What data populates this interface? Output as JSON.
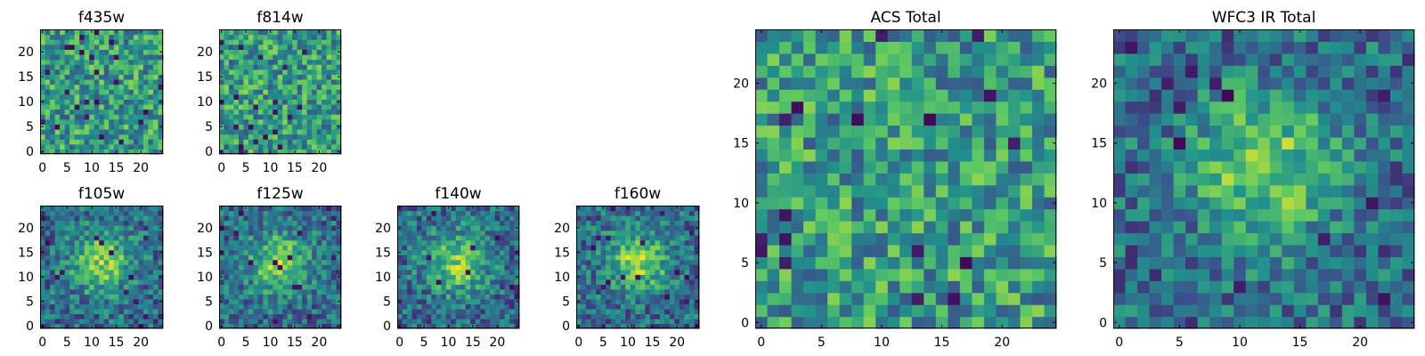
{
  "figure": {
    "type": "heatmap-grid"
  },
  "colormap": [
    "#440154",
    "#3b528b",
    "#21918c",
    "#5ec962",
    "#fde725"
  ],
  "chart_data": [
    {
      "type": "heatmap",
      "title": "f435w",
      "xticks": [
        0,
        5,
        10,
        15,
        20
      ],
      "yticks": [
        0,
        5,
        10,
        15,
        20
      ],
      "xlim": [
        -0.5,
        24.5
      ],
      "ylim": [
        -0.5,
        24.5
      ],
      "grid_size": [
        25,
        25
      ],
      "pattern": "noise",
      "seed": 11
    },
    {
      "type": "heatmap",
      "title": "f814w",
      "xticks": [
        0,
        5,
        10,
        15,
        20
      ],
      "yticks": [
        0,
        5,
        10,
        15,
        20
      ],
      "xlim": [
        -0.5,
        24.5
      ],
      "ylim": [
        -0.5,
        24.5
      ],
      "grid_size": [
        25,
        25
      ],
      "pattern": "noise",
      "seed": 23
    },
    {
      "type": "heatmap",
      "title": "f105w",
      "xticks": [
        0,
        5,
        10,
        15,
        20
      ],
      "yticks": [
        0,
        5,
        10,
        15,
        20
      ],
      "xlim": [
        -0.5,
        24.5
      ],
      "ylim": [
        -0.5,
        24.5
      ],
      "grid_size": [
        25,
        25
      ],
      "pattern": "central source",
      "seed": 37
    },
    {
      "type": "heatmap",
      "title": "f125w",
      "xticks": [
        0,
        5,
        10,
        15,
        20
      ],
      "yticks": [
        0,
        5,
        10,
        15,
        20
      ],
      "xlim": [
        -0.5,
        24.5
      ],
      "ylim": [
        -0.5,
        24.5
      ],
      "grid_size": [
        25,
        25
      ],
      "pattern": "central source",
      "seed": 41
    },
    {
      "type": "heatmap",
      "title": "f140w",
      "xticks": [
        0,
        5,
        10,
        15,
        20
      ],
      "yticks": [
        0,
        5,
        10,
        15,
        20
      ],
      "xlim": [
        -0.5,
        24.5
      ],
      "ylim": [
        -0.5,
        24.5
      ],
      "grid_size": [
        25,
        25
      ],
      "pattern": "central source",
      "seed": 53
    },
    {
      "type": "heatmap",
      "title": "f160w",
      "xticks": [
        0,
        5,
        10,
        15,
        20
      ],
      "yticks": [
        0,
        5,
        10,
        15,
        20
      ],
      "xlim": [
        -0.5,
        24.5
      ],
      "ylim": [
        -0.5,
        24.5
      ],
      "grid_size": [
        25,
        25
      ],
      "pattern": "central source",
      "seed": 67
    },
    {
      "type": "heatmap",
      "title": "ACS Total",
      "xticks": [
        0,
        5,
        10,
        15,
        20
      ],
      "yticks": [
        0,
        5,
        10,
        15,
        20
      ],
      "xlim": [
        -0.5,
        24.5
      ],
      "ylim": [
        -0.5,
        24.5
      ],
      "grid_size": [
        25,
        25
      ],
      "pattern": "noise",
      "seed": 79
    },
    {
      "type": "heatmap",
      "title": "WFC3 IR Total",
      "xticks": [
        0,
        5,
        10,
        15,
        20
      ],
      "yticks": [
        0,
        5,
        10,
        15,
        20
      ],
      "xlim": [
        -0.5,
        24.5
      ],
      "ylim": [
        -0.5,
        24.5
      ],
      "grid_size": [
        25,
        25
      ],
      "pattern": "central source",
      "seed": 97
    }
  ]
}
